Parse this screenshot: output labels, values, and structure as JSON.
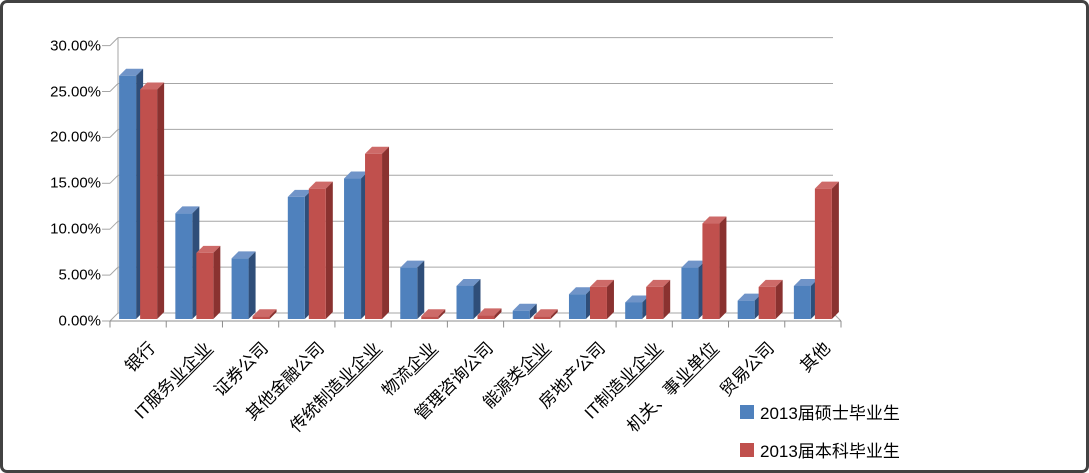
{
  "figure": {
    "kind": "excel-3d-clustered-bar-chart",
    "background": "#FFFFFF",
    "border_color": "#424242"
  },
  "chart_data": {
    "type": "bar",
    "style": "3d-clustered",
    "title": "",
    "xlabel": "",
    "ylabel": "",
    "grid": true,
    "ylim": [
      0,
      30
    ],
    "ytick_values": [
      0,
      5,
      10,
      15,
      20,
      25,
      30
    ],
    "yticks": [
      "0.00%",
      "5.00%",
      "10.00%",
      "15.00%",
      "20.00%",
      "25.00%",
      "30.00%"
    ],
    "legend_position": "bottom-right",
    "categories": [
      {
        "label": "银行",
        "underlined_part": ""
      },
      {
        "label": "IT服务业企业",
        "underlined_part": "业企业"
      },
      {
        "label": "证券公司",
        "underlined_part": ""
      },
      {
        "label": "其他金融公司",
        "underlined_part": ""
      },
      {
        "label": "传统制造业企业",
        "underlined_part": "业企业"
      },
      {
        "label": "物流企业",
        "underlined_part": "企业"
      },
      {
        "label": "管理咨询公司",
        "underlined_part": ""
      },
      {
        "label": "能源类企业",
        "underlined_part": "企业"
      },
      {
        "label": "房地产公司",
        "underlined_part": ""
      },
      {
        "label": "IT制造业企业",
        "underlined_part": "业企业"
      },
      {
        "label": "机关、事业单位",
        "underlined_part": "业单位"
      },
      {
        "label": "贸易公司",
        "underlined_part": ""
      },
      {
        "label": "其他",
        "underlined_part": ""
      }
    ],
    "series": [
      {
        "name": "2013届硕士毕业生",
        "color": "#4F81BD",
        "values": [
          26.5,
          11.5,
          6.6,
          13.3,
          15.3,
          5.6,
          3.6,
          0.9,
          2.7,
          1.8,
          5.6,
          2.0,
          3.6
        ]
      },
      {
        "name": "2013届本科毕业生",
        "color": "#C0504D",
        "values": [
          25.0,
          7.2,
          0.3,
          14.2,
          18.0,
          0.3,
          0.4,
          0.3,
          3.5,
          3.5,
          10.4,
          3.5,
          14.2
        ]
      }
    ]
  },
  "colors": {
    "series1_front": "#4F81BD",
    "series1_side": "#2F4E79",
    "series1_top": "#7094C8",
    "series2_front": "#C0504D",
    "series2_side": "#8A3230",
    "series2_top": "#CD6A68",
    "gridline": "#A6A6A6",
    "axis": "#8C8C8C",
    "text": "#000000"
  }
}
